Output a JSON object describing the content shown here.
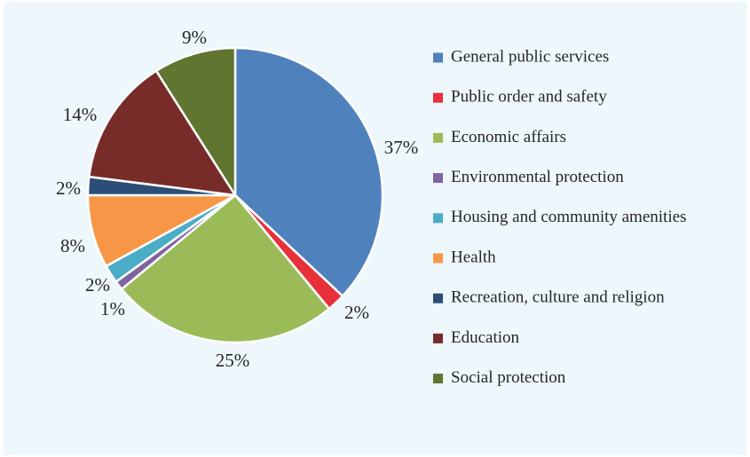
{
  "chart_data": {
    "type": "pie",
    "slices": [
      {
        "label": "General public services",
        "value": 37,
        "value_label": "37%",
        "color": "#4f81bd"
      },
      {
        "label": "Public order and safety",
        "value": 2,
        "value_label": "2%",
        "color": "#e8303a"
      },
      {
        "label": "Economic affairs",
        "value": 25,
        "value_label": "25%",
        "color": "#9bbb59"
      },
      {
        "label": "Environmental protection",
        "value": 1,
        "value_label": "1%",
        "color": "#8064a2"
      },
      {
        "label": "Housing and community amenities",
        "value": 2,
        "value_label": "2%",
        "color": "#4bacc6"
      },
      {
        "label": "Health",
        "value": 8,
        "value_label": "8%",
        "color": "#f79646"
      },
      {
        "label": "Recreation, culture and religion",
        "value": 2,
        "value_label": "2%",
        "color": "#2c4d75"
      },
      {
        "label": "Education",
        "value": 14,
        "value_label": "14%",
        "color": "#772c2a"
      },
      {
        "label": "Social protection",
        "value": 9,
        "value_label": "9%",
        "color": "#5f7530"
      }
    ],
    "legend_position": "right",
    "background": "#eef7fc"
  }
}
